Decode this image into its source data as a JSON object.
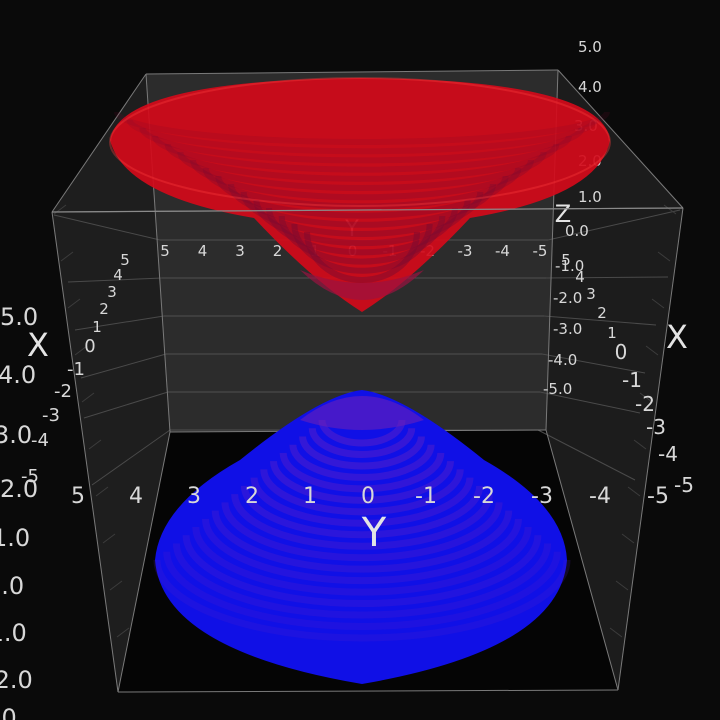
{
  "chart_data": {
    "type": "surface3d",
    "surfaces": [
      {
        "equation": "z = sqrt(1 + x^2 + y^2)",
        "sheet": "upper",
        "color": "#d40a1a"
      },
      {
        "equation": "z = -sqrt(1 + x^2 + y^2)",
        "sheet": "lower",
        "color": "#1010e6"
      }
    ],
    "axes": {
      "x": {
        "label": "X",
        "range": [
          -5,
          5
        ],
        "ticks": [
          "5",
          "4",
          "3",
          "2",
          "1",
          "0",
          "-1",
          "-2",
          "-3",
          "-4",
          "-5"
        ]
      },
      "y": {
        "label": "Y",
        "range": [
          -5,
          5
        ],
        "ticks": [
          "5",
          "4",
          "3",
          "2",
          "1",
          "0",
          "-1",
          "-2",
          "-3",
          "-4",
          "-5"
        ]
      },
      "z": {
        "label": "Z",
        "range": [
          -5,
          5
        ],
        "ticks": [
          "5.0",
          "4.0",
          "3.0",
          "2.0",
          "1.0",
          "0.0",
          "-1.0",
          "-2.0",
          "-3.0",
          "-4.0",
          "-5.0"
        ]
      }
    },
    "grid": true,
    "background": "#0a0a0a"
  }
}
